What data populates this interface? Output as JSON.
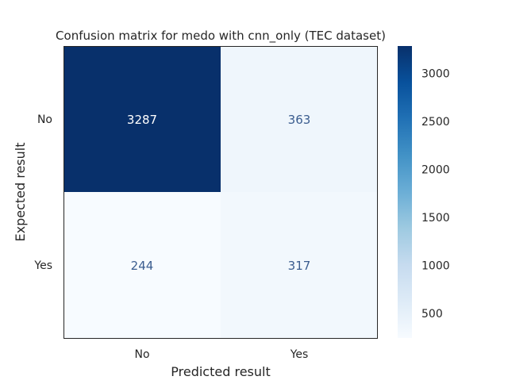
{
  "chart_data": {
    "type": "heatmap",
    "title": "Confusion matrix for medo with cnn_only (TEC dataset)",
    "xlabel": "Predicted result",
    "ylabel": "Expected result",
    "x_categories": [
      "No",
      "Yes"
    ],
    "y_categories": [
      "No",
      "Yes"
    ],
    "matrix": [
      [
        3287,
        363
      ],
      [
        244,
        317
      ]
    ],
    "colormap": "Blues",
    "color_range": [
      244,
      3287
    ],
    "colorbar_ticks": [
      "500",
      "1000",
      "1500",
      "2000",
      "2500",
      "3000"
    ],
    "colors": {
      "max": "#08306b",
      "min": "#f7fbff",
      "text_dark_cell": "#ffffff",
      "text_light_cell": "#3b5d8f"
    }
  }
}
